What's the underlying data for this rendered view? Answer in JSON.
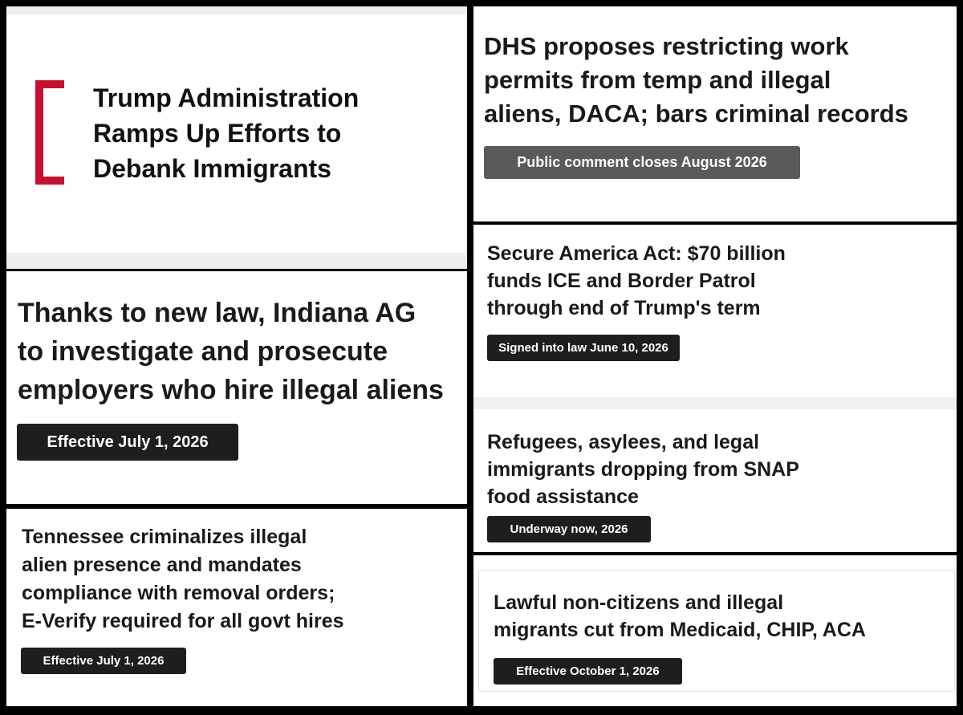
{
  "panels": [
    {
      "headline": [
        "Trump Administration",
        "Ramps Up Efforts to",
        "Debank Immigrants"
      ]
    },
    {
      "headline": [
        "Thanks to new law, Indiana AG",
        "to investigate and prosecute",
        "employers who hire illegal aliens"
      ],
      "badge": "Effective July 1, 2026"
    },
    {
      "headline": [
        "Tennessee criminalizes illegal",
        "alien presence and mandates",
        "compliance with removal orders;",
        "E-Verify required for all govt hires"
      ],
      "badge": "Effective July 1, 2026"
    },
    {
      "headline": [
        "DHS proposes restricting work",
        "permits from temp and illegal",
        "aliens, DACA; bars criminal records"
      ],
      "badge": "Public comment closes August 2026"
    },
    {
      "headline": [
        "Secure America Act: $70 billion",
        "funds ICE and Border Patrol",
        "through end of Trump's term"
      ],
      "badge": "Signed into law June 10, 2026"
    },
    {
      "headline": [
        "Refugees, asylees, and legal",
        "immigrants dropping from SNAP",
        "food assistance"
      ],
      "badge": "Underway now, 2026"
    },
    {
      "headline": [
        "Lawful non-citizens and illegal",
        "migrants cut from Medicaid, CHIP, ACA"
      ],
      "badge": "Effective October 1, 2026"
    }
  ]
}
